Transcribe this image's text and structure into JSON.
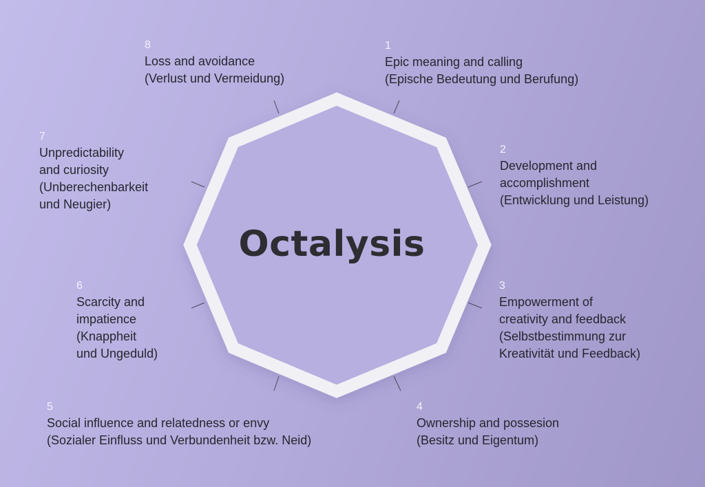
{
  "diagram": {
    "title": "Octalysis",
    "drives": [
      {
        "number": "1",
        "lines": [
          "Epic meaning and calling",
          "(Epische Bedeutung und Berufung)"
        ]
      },
      {
        "number": "2",
        "lines": [
          "Development and",
          "accomplishment",
          "(Entwicklung und Leistung)"
        ]
      },
      {
        "number": "3",
        "lines": [
          "Empowerment of",
          "creativity and feedback",
          "(Selbstbestimmung zur",
          "Kreativität und Feedback)"
        ]
      },
      {
        "number": "4",
        "lines": [
          "Ownership and possesion",
          "(Besitz und Eigentum)"
        ]
      },
      {
        "number": "5",
        "lines": [
          "Social influence and relatedness or envy",
          "(Sozialer Einfluss und Verbundenheit bzw. Neid)"
        ]
      },
      {
        "number": "6",
        "lines": [
          "Scarcity and",
          "impatience",
          "(Knappheit",
          "und Ungeduld)"
        ]
      },
      {
        "number": "7",
        "lines": [
          "Unpredictability",
          "and curiosity",
          "(Unberechenbarkeit",
          "und Neugier)"
        ]
      },
      {
        "number": "8",
        "lines": [
          "Loss and avoidance",
          "(Verlust und Vermeidung)"
        ]
      }
    ]
  },
  "colors": {
    "octagon_stroke": "#f1f0f5",
    "octagon_fill": "#b6afe0",
    "connector": "#4a4a5c",
    "text": "#262630",
    "number": "#f4f2fb"
  }
}
